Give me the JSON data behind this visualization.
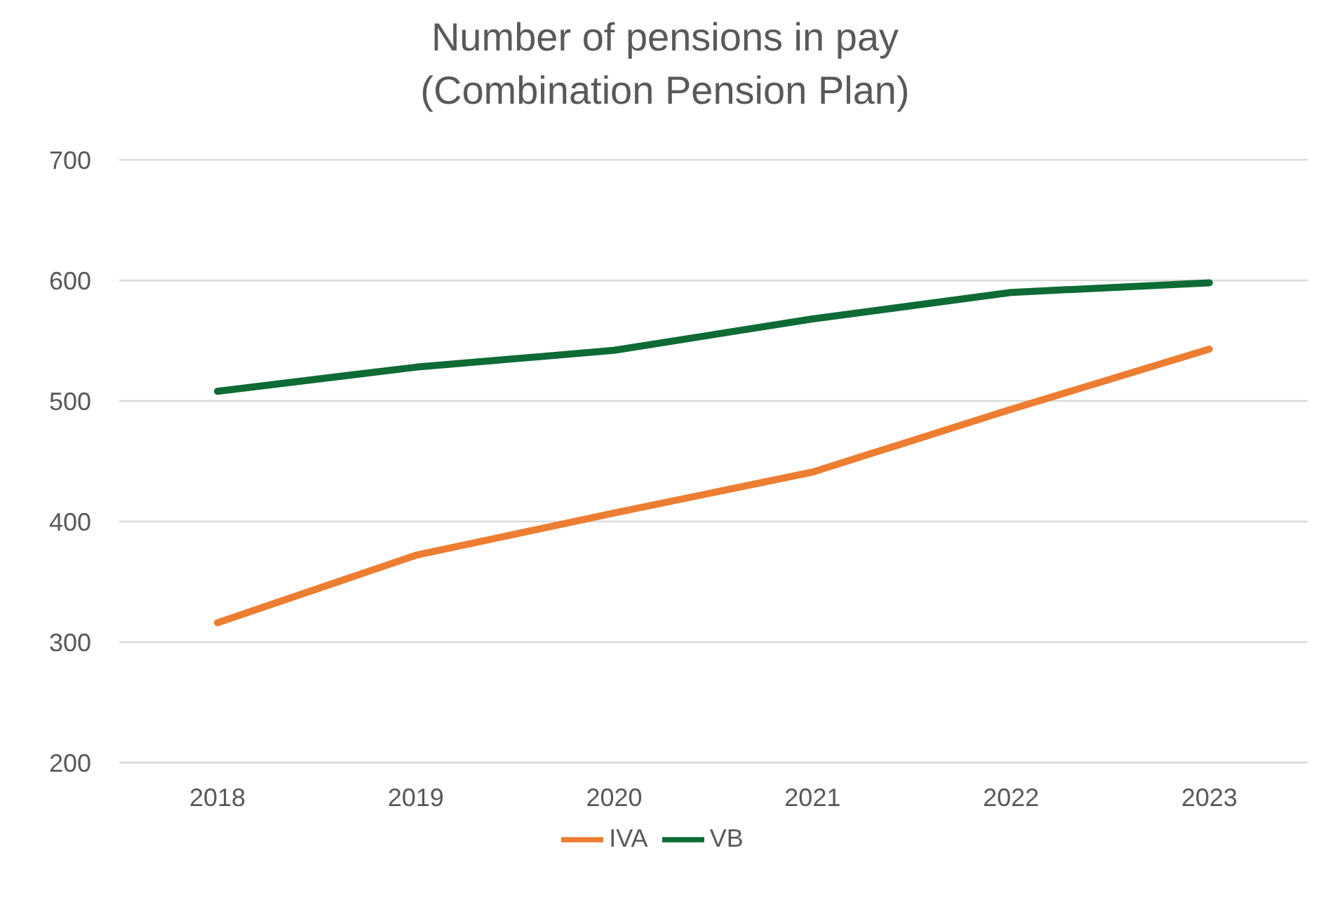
{
  "chart_data": {
    "type": "line",
    "title": "Number of pensions in pay\n(Combination Pension Plan)",
    "categories": [
      "2018",
      "2019",
      "2020",
      "2021",
      "2022",
      "2023"
    ],
    "series": [
      {
        "name": "VB",
        "color": "#0e6b35",
        "values": [
          508,
          528,
          542,
          568,
          590,
          598
        ]
      },
      {
        "name": "IVA",
        "color": "#ed7d31",
        "values": [
          316,
          372,
          407,
          441,
          493,
          543
        ]
      }
    ],
    "ylim": [
      200,
      700
    ],
    "yticks": [
      200,
      300,
      400,
      500,
      600,
      700
    ],
    "grid": "y",
    "legend": "bottom",
    "marker": "none",
    "line_style": "solid"
  }
}
